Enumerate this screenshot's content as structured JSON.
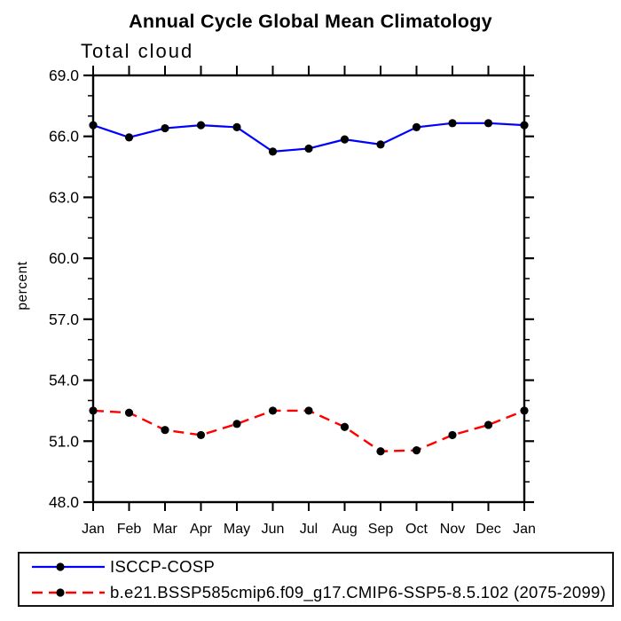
{
  "chart_data": {
    "type": "line",
    "title": "Annual Cycle Global Mean Climatology",
    "subtitle": "Total cloud",
    "ylabel": "percent",
    "xlabel": "",
    "categories": [
      "Jan",
      "Feb",
      "Mar",
      "Apr",
      "May",
      "Jun",
      "Jul",
      "Aug",
      "Sep",
      "Oct",
      "Nov",
      "Dec",
      "Jan"
    ],
    "ylim": [
      48.0,
      69.0
    ],
    "y_major_step": 3.0,
    "y_minor_step": 1.0,
    "ytick_labels": [
      "48.0",
      "51.0",
      "54.0",
      "57.0",
      "60.0",
      "63.0",
      "66.0",
      "69.0"
    ],
    "grid": false,
    "legend_position": "bottom",
    "background_color": "#ffffff",
    "axis_color": "#000000",
    "marker_color": "#000000",
    "series": [
      {
        "name": "ISCCP-COSP",
        "color": "#0000ff",
        "style": "solid",
        "marker": "dot",
        "values": [
          66.55,
          65.95,
          66.4,
          66.55,
          66.45,
          65.25,
          65.4,
          65.85,
          65.6,
          66.45,
          66.65,
          66.65,
          66.55
        ]
      },
      {
        "name": "b.e21.BSSP585cmip6.f09_g17.CMIP6-SSP5-8.5.102 (2075-2099)",
        "color": "#ff0000",
        "style": "dashed",
        "marker": "dot",
        "values": [
          52.5,
          52.4,
          51.55,
          51.3,
          51.85,
          52.5,
          52.5,
          51.7,
          50.5,
          50.55,
          51.3,
          51.8,
          52.5
        ]
      }
    ]
  }
}
